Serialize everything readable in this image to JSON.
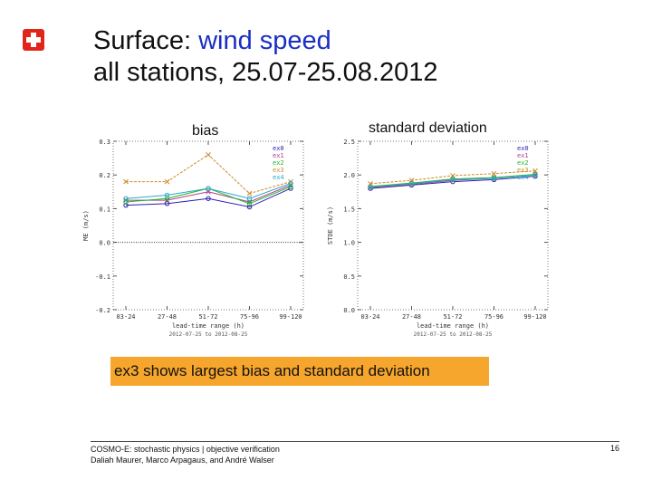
{
  "header": {
    "title_prefix": "Surface: ",
    "title_accent": "wind speed",
    "title_line2": "all stations, 25.07-25.08.2012",
    "accent_color": "#1b2ec4",
    "logo_color": "#e1251b"
  },
  "callout": {
    "text": "ex3 shows largest bias and standard deviation",
    "color": "#f7a62d"
  },
  "footer": {
    "line1": "COSMO-E: stochastic physics | objective verification",
    "line2": "Daliah Maurer, Marco Arpagaus, and André Walser",
    "page": "16"
  },
  "chart_data": [
    {
      "type": "line",
      "panel_title": "bias",
      "ylabel": "ME (m/s)",
      "xlabel": "lead-time range (h)",
      "caption": "2012-07-25 to 2012-08-25",
      "categories": [
        "03-24",
        "27-48",
        "51-72",
        "75-96",
        "99-120"
      ],
      "ylim": [
        -0.2,
        0.3
      ],
      "yticks": [
        -0.2,
        -0.1,
        0.0,
        0.1,
        0.2,
        0.3
      ],
      "ytick_labels": [
        "-0.2",
        "-0.1",
        "0.0",
        "0.1",
        "0.2",
        "0.3"
      ],
      "zero_line": true,
      "legend_position": "top-right",
      "series": [
        {
          "name": "ex0",
          "color": "#2a1fb0",
          "marker": "o",
          "values": [
            0.11,
            0.115,
            0.13,
            0.105,
            0.16
          ]
        },
        {
          "name": "ex1",
          "color": "#b0408f",
          "marker": "x",
          "values": [
            0.125,
            0.125,
            0.15,
            0.12,
            0.17
          ]
        },
        {
          "name": "ex2",
          "color": "#23b82b",
          "marker": "o",
          "values": [
            0.12,
            0.13,
            0.16,
            0.115,
            0.165
          ]
        },
        {
          "name": "ex3",
          "color": "#d08a2a",
          "marker": "x",
          "values": [
            0.18,
            0.18,
            0.26,
            0.145,
            0.18
          ]
        },
        {
          "name": "ex4",
          "color": "#2ca8c8",
          "marker": "o",
          "values": [
            0.13,
            0.14,
            0.16,
            0.13,
            0.175
          ]
        }
      ]
    },
    {
      "type": "line",
      "panel_title": "standard deviation",
      "ylabel": "STDE (m/s)",
      "xlabel": "lead-time range (h)",
      "caption": "2012-07-25 to 2012-08-25",
      "categories": [
        "03-24",
        "27-48",
        "51-72",
        "75-96",
        "99-120"
      ],
      "ylim": [
        0.0,
        2.5
      ],
      "yticks": [
        0.0,
        0.5,
        1.0,
        1.5,
        2.0,
        2.5
      ],
      "ytick_labels": [
        "0.0",
        "0.5",
        "1.0",
        "1.5",
        "2.0",
        "2.5"
      ],
      "zero_line": false,
      "legend_position": "top-right",
      "series": [
        {
          "name": "ex0",
          "color": "#2a1fb0",
          "marker": "o",
          "values": [
            1.8,
            1.85,
            1.9,
            1.93,
            1.98
          ]
        },
        {
          "name": "ex1",
          "color": "#b0408f",
          "marker": "x",
          "values": [
            1.81,
            1.86,
            1.92,
            1.95,
            2.0
          ]
        },
        {
          "name": "ex2",
          "color": "#23b82b",
          "marker": "o",
          "values": [
            1.83,
            1.88,
            1.94,
            1.96,
            2.01
          ]
        },
        {
          "name": "ex3",
          "color": "#d08a2a",
          "marker": "x",
          "values": [
            1.87,
            1.92,
            1.99,
            2.02,
            2.06
          ]
        },
        {
          "name": "ex4",
          "color": "#2ca8c8",
          "marker": "o",
          "values": [
            1.82,
            1.87,
            1.93,
            1.95,
            2.0
          ]
        }
      ]
    }
  ]
}
